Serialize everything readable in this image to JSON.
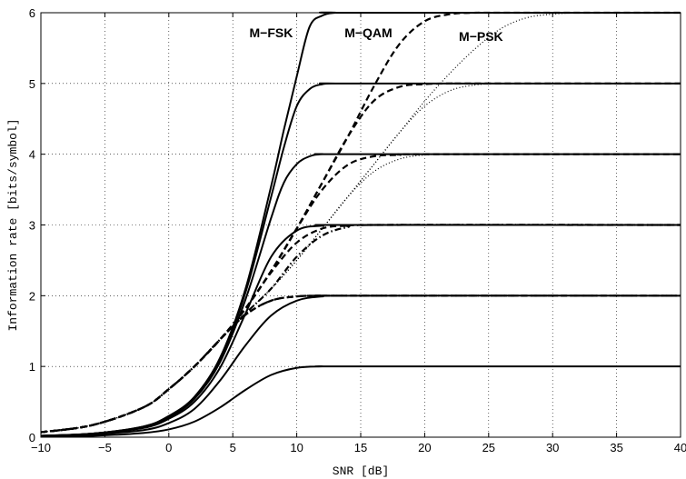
{
  "chart_data": {
    "type": "line",
    "title": "",
    "xlabel": "SNR [dB]",
    "ylabel": "Information rate [bits/symbol]",
    "xlim": [
      -10,
      40
    ],
    "ylim": [
      0,
      6
    ],
    "xticks": [
      -10,
      -5,
      0,
      5,
      10,
      15,
      20,
      25,
      30,
      35,
      40
    ],
    "yticks": [
      0,
      1,
      2,
      3,
      4,
      5,
      6
    ],
    "grid": true,
    "legend": "none",
    "annotations": [
      {
        "text": "M−FSK",
        "x": 8.0,
        "y": 5.65
      },
      {
        "text": "M−QAM",
        "x": 15.6,
        "y": 5.65
      },
      {
        "text": "M−PSK",
        "x": 24.4,
        "y": 5.6
      }
    ],
    "series": [
      {
        "group": "M-FSK",
        "style": "solid",
        "x": [
          -10,
          -6,
          -2,
          0,
          2,
          4,
          6,
          8,
          10,
          12,
          14,
          40
        ],
        "y": [
          0.01,
          0.02,
          0.06,
          0.11,
          0.22,
          0.42,
          0.67,
          0.88,
          0.98,
          1.0,
          1.0,
          1.0
        ]
      },
      {
        "group": "M-FSK",
        "style": "solid",
        "x": [
          -10,
          -6,
          -2,
          0,
          2,
          4,
          6,
          8,
          10,
          12,
          14,
          40
        ],
        "y": [
          0.02,
          0.04,
          0.1,
          0.2,
          0.4,
          0.8,
          1.3,
          1.72,
          1.93,
          1.99,
          2.0,
          2.0
        ]
      },
      {
        "group": "M-FSK",
        "style": "solid",
        "x": [
          -10,
          -6,
          -2,
          0,
          2,
          4,
          6,
          8,
          10,
          12,
          14,
          40
        ],
        "y": [
          0.02,
          0.05,
          0.13,
          0.26,
          0.5,
          0.98,
          1.75,
          2.55,
          2.92,
          2.99,
          3.0,
          3.0
        ]
      },
      {
        "group": "M-FSK",
        "style": "solid",
        "x": [
          -10,
          -6,
          -2,
          0,
          2,
          4,
          6,
          8,
          9,
          10,
          11,
          12,
          14,
          40
        ],
        "y": [
          0.02,
          0.05,
          0.14,
          0.28,
          0.54,
          1.06,
          1.95,
          3.1,
          3.6,
          3.86,
          3.97,
          4.0,
          4.0,
          4.0
        ]
      },
      {
        "group": "M-FSK",
        "style": "solid",
        "x": [
          -10,
          -6,
          -2,
          0,
          2,
          4,
          6,
          8,
          9,
          10,
          11,
          12,
          13,
          14,
          40
        ],
        "y": [
          0.02,
          0.05,
          0.15,
          0.29,
          0.56,
          1.1,
          2.05,
          3.4,
          4.1,
          4.68,
          4.92,
          4.99,
          5.0,
          5.0,
          5.0
        ]
      },
      {
        "group": "M-FSK",
        "style": "solid",
        "x": [
          -10,
          -6,
          -2,
          0,
          2,
          4,
          6,
          8,
          9,
          10,
          11,
          12,
          13,
          14,
          40
        ],
        "y": [
          0.02,
          0.05,
          0.15,
          0.3,
          0.57,
          1.12,
          2.1,
          3.55,
          4.35,
          5.1,
          5.8,
          5.96,
          6.0,
          6.0,
          6.0
        ]
      },
      {
        "group": "M-QAM",
        "style": "dashed",
        "x": [
          -10,
          -6,
          -2,
          0,
          2,
          4,
          6,
          8,
          10,
          12,
          14,
          40
        ],
        "y": [
          0.07,
          0.17,
          0.42,
          0.68,
          1.0,
          1.38,
          1.73,
          1.93,
          1.99,
          2.0,
          2.0,
          2.0
        ]
      },
      {
        "group": "M-QAM",
        "style": "dashed",
        "x": [
          -10,
          -6,
          -2,
          0,
          2,
          4,
          6,
          8,
          10,
          12,
          14,
          16,
          40
        ],
        "y": [
          0.07,
          0.17,
          0.42,
          0.68,
          1.0,
          1.38,
          1.82,
          2.33,
          2.75,
          2.95,
          2.99,
          3.0,
          3.0
        ]
      },
      {
        "group": "M-QAM",
        "style": "dashed",
        "x": [
          -10,
          -6,
          -2,
          0,
          2,
          4,
          6,
          8,
          10,
          12,
          14,
          16,
          18,
          20,
          40
        ],
        "y": [
          0.07,
          0.17,
          0.42,
          0.68,
          1.0,
          1.38,
          1.82,
          2.35,
          2.95,
          3.5,
          3.85,
          3.97,
          3.99,
          4.0,
          4.0
        ]
      },
      {
        "group": "M-QAM",
        "style": "dashed",
        "x": [
          -10,
          -6,
          -2,
          0,
          2,
          4,
          6,
          8,
          10,
          12,
          14,
          16,
          18,
          20,
          22,
          24,
          40
        ],
        "y": [
          0.07,
          0.17,
          0.42,
          0.68,
          1.0,
          1.38,
          1.82,
          2.35,
          2.95,
          3.6,
          4.25,
          4.75,
          4.95,
          4.99,
          5.0,
          5.0,
          5.0
        ]
      },
      {
        "group": "M-QAM",
        "style": "dashed",
        "x": [
          -10,
          -6,
          -2,
          0,
          2,
          4,
          6,
          8,
          10,
          12,
          14,
          16,
          18,
          20,
          22,
          24,
          26,
          40
        ],
        "y": [
          0.07,
          0.17,
          0.42,
          0.68,
          1.0,
          1.38,
          1.82,
          2.35,
          2.95,
          3.6,
          4.25,
          4.95,
          5.55,
          5.88,
          5.98,
          6.0,
          6.0,
          6.0
        ]
      },
      {
        "group": "M-PSK",
        "style": "dashdot",
        "x": [
          -10,
          -6,
          -2,
          0,
          2,
          4,
          6,
          8,
          10,
          12,
          14,
          40
        ],
        "y": [
          0.07,
          0.17,
          0.42,
          0.68,
          1.0,
          1.38,
          1.73,
          1.93,
          1.99,
          2.0,
          2.0,
          2.0
        ]
      },
      {
        "group": "M-PSK",
        "style": "dashdot",
        "x": [
          -10,
          -6,
          -2,
          0,
          2,
          4,
          6,
          8,
          10,
          12,
          14,
          16,
          40
        ],
        "y": [
          0.07,
          0.17,
          0.42,
          0.68,
          1.0,
          1.38,
          1.75,
          2.1,
          2.55,
          2.85,
          2.97,
          3.0,
          3.0
        ]
      },
      {
        "group": "M-PSK",
        "style": "dotted",
        "x": [
          -10,
          -6,
          -2,
          0,
          2,
          4,
          6,
          8,
          10,
          12,
          14,
          16,
          18,
          20,
          22,
          24,
          40
        ],
        "y": [
          0.07,
          0.17,
          0.42,
          0.68,
          1.0,
          1.38,
          1.75,
          2.1,
          2.5,
          2.95,
          3.4,
          3.75,
          3.93,
          3.99,
          4.0,
          4.0,
          4.0
        ]
      },
      {
        "group": "M-PSK",
        "style": "dotted",
        "x": [
          -10,
          -6,
          -2,
          0,
          2,
          4,
          6,
          8,
          10,
          12,
          14,
          16,
          18,
          20,
          22,
          24,
          26,
          28,
          40
        ],
        "y": [
          0.07,
          0.17,
          0.42,
          0.68,
          1.0,
          1.38,
          1.75,
          2.1,
          2.5,
          2.95,
          3.4,
          3.85,
          4.3,
          4.68,
          4.9,
          4.98,
          5.0,
          5.0,
          5.0
        ]
      },
      {
        "group": "M-PSK",
        "style": "dotted",
        "x": [
          -10,
          -6,
          -2,
          0,
          2,
          4,
          6,
          8,
          10,
          12,
          14,
          16,
          18,
          20,
          22,
          24,
          26,
          28,
          30,
          32,
          34,
          36,
          40
        ],
        "y": [
          0.07,
          0.17,
          0.42,
          0.68,
          1.0,
          1.38,
          1.75,
          2.1,
          2.5,
          2.95,
          3.4,
          3.85,
          4.3,
          4.75,
          5.15,
          5.5,
          5.78,
          5.93,
          5.98,
          6.0,
          6.0,
          6.0,
          6.0
        ]
      }
    ]
  }
}
